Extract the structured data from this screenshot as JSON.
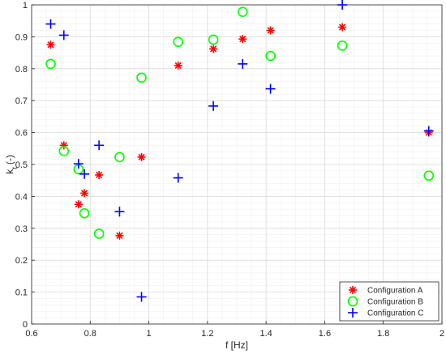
{
  "chart_data": {
    "type": "scatter",
    "title": "",
    "xlabel": "f [Hz]",
    "ylabel_main": "k",
    "ylabel_sub": "t",
    "ylabel_suffix": " (-)",
    "xlim": [
      0.6,
      2.0
    ],
    "ylim": [
      0,
      1
    ],
    "x_ticks": [
      "0.6",
      "0.8",
      "1",
      "1.2",
      "1.4",
      "1.6",
      "1.8",
      "2"
    ],
    "y_ticks": [
      "0",
      "0.1",
      "0.2",
      "0.3",
      "0.4",
      "0.5",
      "0.6",
      "0.7",
      "0.8",
      "0.9",
      "1"
    ],
    "grid": true,
    "minor_grid": true,
    "legend_position": "bottom-right",
    "series": [
      {
        "name": "Configuration A",
        "marker": "asterisk",
        "color": "#ff0000",
        "points": [
          [
            0.665,
            0.875
          ],
          [
            0.71,
            0.56
          ],
          [
            0.76,
            0.375
          ],
          [
            0.78,
            0.41
          ],
          [
            0.83,
            0.467
          ],
          [
            0.9,
            0.277
          ],
          [
            0.975,
            0.523
          ],
          [
            1.1,
            0.81
          ],
          [
            1.22,
            0.862
          ],
          [
            1.32,
            0.893
          ],
          [
            1.415,
            0.92
          ],
          [
            1.66,
            0.93
          ],
          [
            1.955,
            0.6
          ]
        ]
      },
      {
        "name": "Configuration B",
        "marker": "circle",
        "color": "#00ff00",
        "points": [
          [
            0.665,
            0.815
          ],
          [
            0.71,
            0.542
          ],
          [
            0.76,
            0.485
          ],
          [
            0.78,
            0.347
          ],
          [
            0.83,
            0.283
          ],
          [
            0.9,
            0.523
          ],
          [
            0.975,
            0.772
          ],
          [
            1.1,
            0.884
          ],
          [
            1.22,
            0.891
          ],
          [
            1.32,
            0.978
          ],
          [
            1.415,
            0.84
          ],
          [
            1.66,
            0.872
          ],
          [
            1.955,
            0.465
          ]
        ]
      },
      {
        "name": "Configuration C",
        "marker": "plus",
        "color": "#0000ff",
        "points": [
          [
            0.665,
            0.94
          ],
          [
            0.71,
            0.905
          ],
          [
            0.76,
            0.502
          ],
          [
            0.78,
            0.47
          ],
          [
            0.83,
            0.56
          ],
          [
            0.9,
            0.352
          ],
          [
            0.975,
            0.085
          ],
          [
            1.1,
            0.458
          ],
          [
            1.22,
            0.683
          ],
          [
            1.32,
            0.815
          ],
          [
            1.415,
            0.737
          ],
          [
            1.66,
            1.0
          ],
          [
            1.955,
            0.605
          ]
        ]
      }
    ]
  }
}
